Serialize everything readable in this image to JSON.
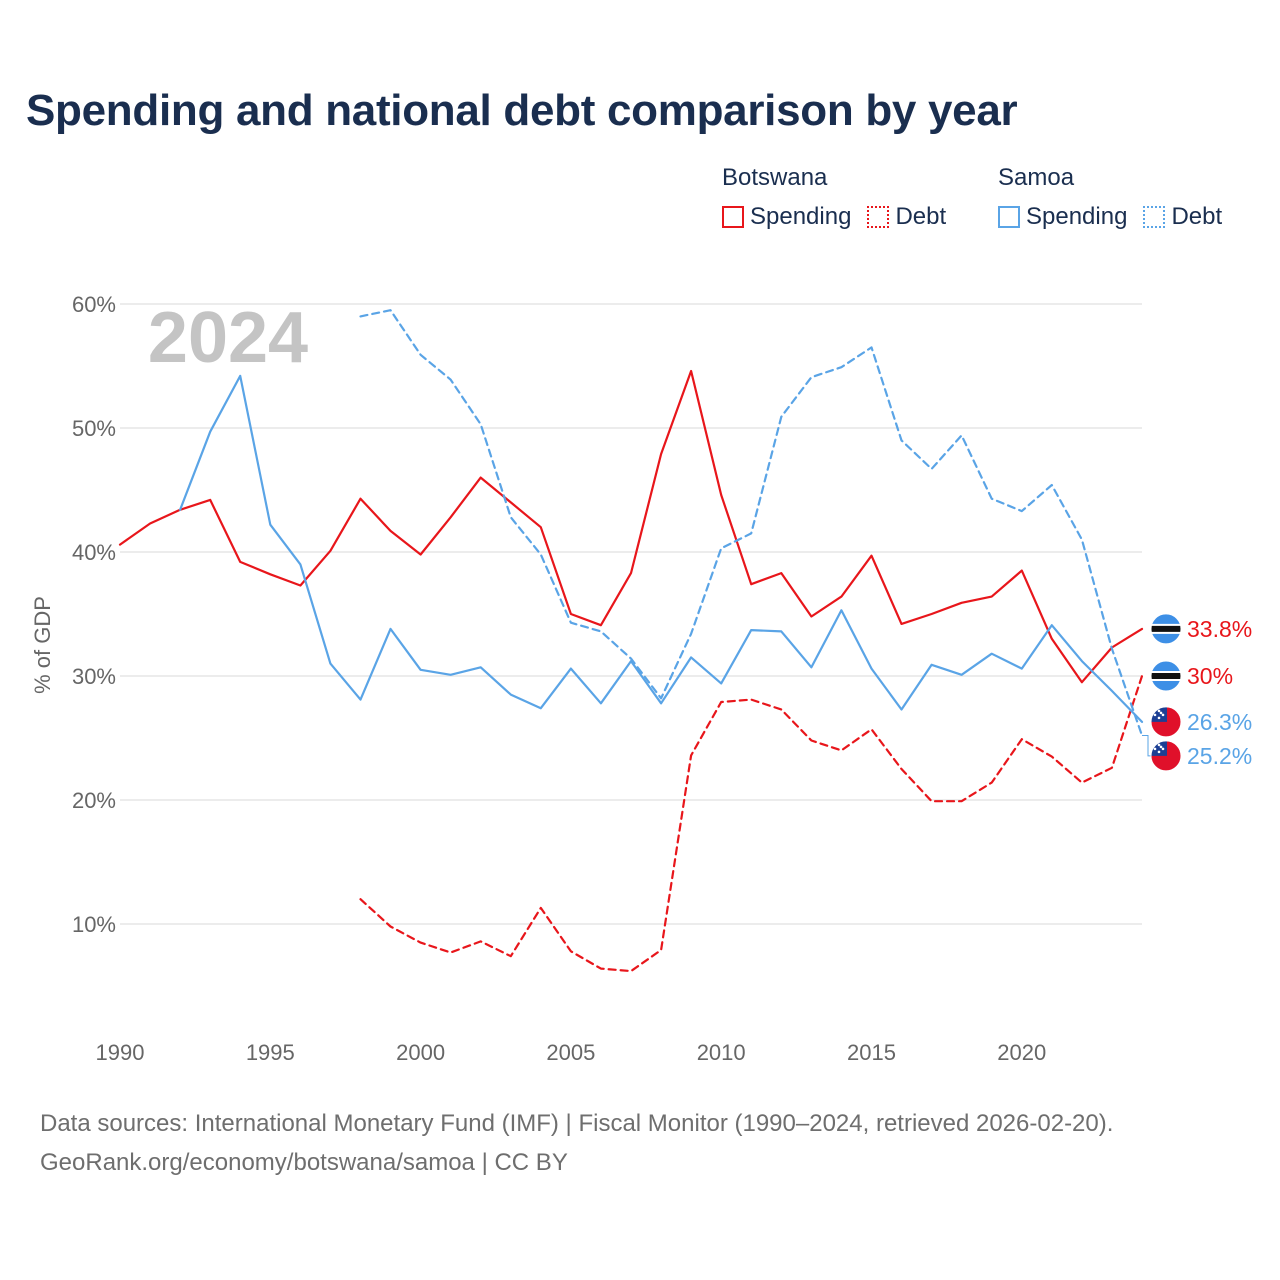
{
  "title": "Spending and national debt comparison by year",
  "legend": {
    "groups": [
      {
        "country": "Botswana",
        "color": "#e8161b",
        "items": [
          {
            "label": "Spending",
            "style": "solid"
          },
          {
            "label": "Debt",
            "style": "dotted"
          }
        ]
      },
      {
        "country": "Samoa",
        "color": "#5aa4e6",
        "items": [
          {
            "label": "Spending",
            "style": "solid"
          },
          {
            "label": "Debt",
            "style": "dotted"
          }
        ]
      }
    ]
  },
  "footer": {
    "line1": "Data sources: International Monetary Fund (IMF) | Fiscal Monitor (1990–2024, retrieved 2026-02-20).",
    "line2": "GeoRank.org/economy/botswana/samoa | CC BY"
  },
  "chart_data": {
    "type": "line",
    "title": "Spending and national debt comparison by year",
    "year_watermark": "2024",
    "xlabel": "",
    "ylabel": "% of GDP",
    "xlim": [
      1990,
      2024
    ],
    "ylim": [
      2,
      60
    ],
    "x_ticks": [
      1990,
      1995,
      2000,
      2005,
      2010,
      2015,
      2020
    ],
    "y_ticks": [
      10,
      20,
      30,
      40,
      50,
      60
    ],
    "y_tick_labels": [
      "10%",
      "20%",
      "30%",
      "40%",
      "50%",
      "60%"
    ],
    "grid": true,
    "series": [
      {
        "name": "Botswana Spending",
        "country": "Botswana",
        "kind": "Spending",
        "color": "#e8161b",
        "dash": "solid",
        "x": [
          1990,
          1991,
          1992,
          1993,
          1994,
          1995,
          1996,
          1997,
          1998,
          1999,
          2000,
          2001,
          2002,
          2003,
          2004,
          2005,
          2006,
          2007,
          2008,
          2009,
          2010,
          2011,
          2012,
          2013,
          2014,
          2015,
          2016,
          2017,
          2018,
          2019,
          2020,
          2021,
          2022,
          2023,
          2024
        ],
        "values": [
          40.6,
          42.3,
          43.4,
          44.2,
          39.2,
          38.2,
          37.3,
          40.1,
          44.3,
          41.7,
          39.8,
          42.8,
          46.0,
          44.0,
          42.0,
          35.0,
          34.1,
          38.3,
          47.9,
          54.6,
          44.6,
          37.4,
          38.3,
          34.8,
          36.4,
          39.7,
          34.2,
          35.0,
          35.9,
          36.4,
          38.5,
          33.0,
          29.5,
          32.3,
          33.8
        ],
        "end_label": "33.8%"
      },
      {
        "name": "Botswana Debt",
        "country": "Botswana",
        "kind": "Debt",
        "color": "#e8161b",
        "dash": "dashed",
        "x": [
          1998,
          1999,
          2000,
          2001,
          2002,
          2003,
          2004,
          2005,
          2006,
          2007,
          2008,
          2009,
          2010,
          2011,
          2012,
          2013,
          2014,
          2015,
          2016,
          2017,
          2018,
          2019,
          2020,
          2021,
          2022,
          2023,
          2024
        ],
        "values": [
          12.0,
          9.8,
          8.5,
          7.7,
          8.6,
          7.4,
          11.3,
          7.8,
          6.4,
          6.2,
          7.9,
          23.6,
          27.9,
          28.1,
          27.3,
          24.8,
          24.0,
          25.7,
          22.5,
          19.9,
          19.9,
          21.4,
          24.9,
          23.5,
          21.4,
          22.6,
          30.0
        ],
        "end_label": "30%"
      },
      {
        "name": "Samoa Spending",
        "country": "Samoa",
        "kind": "Spending",
        "color": "#5aa4e6",
        "dash": "solid",
        "x": [
          1992,
          1993,
          1994,
          1995,
          1996,
          1997,
          1998,
          1999,
          2000,
          2001,
          2002,
          2003,
          2004,
          2005,
          2006,
          2007,
          2008,
          2009,
          2010,
          2011,
          2012,
          2013,
          2014,
          2015,
          2016,
          2017,
          2018,
          2019,
          2020,
          2021,
          2022,
          2023,
          2024
        ],
        "values": [
          43.4,
          49.7,
          54.2,
          42.2,
          39.0,
          31.0,
          28.1,
          33.8,
          30.5,
          30.1,
          30.7,
          28.5,
          27.4,
          30.6,
          27.8,
          31.2,
          27.8,
          31.5,
          29.4,
          33.7,
          33.6,
          30.7,
          35.3,
          30.6,
          27.3,
          30.9,
          30.1,
          31.8,
          30.6,
          34.1,
          31.2,
          28.8,
          26.3
        ],
        "end_label": "26.3%"
      },
      {
        "name": "Samoa Debt",
        "country": "Samoa",
        "kind": "Debt",
        "color": "#5aa4e6",
        "dash": "dashed",
        "x": [
          1998,
          1999,
          2000,
          2001,
          2002,
          2003,
          2004,
          2005,
          2006,
          2007,
          2008,
          2009,
          2010,
          2011,
          2012,
          2013,
          2014,
          2015,
          2016,
          2017,
          2018,
          2019,
          2020,
          2021,
          2022,
          2023,
          2024
        ],
        "values": [
          59.0,
          59.5,
          55.9,
          53.9,
          50.3,
          42.8,
          39.8,
          34.3,
          33.6,
          31.4,
          28.2,
          33.4,
          40.3,
          41.5,
          50.9,
          54.1,
          54.9,
          56.5,
          49.0,
          46.7,
          49.4,
          44.3,
          43.3,
          45.4,
          41.0,
          32.2,
          25.2
        ],
        "end_label": "25.2%"
      }
    ]
  }
}
